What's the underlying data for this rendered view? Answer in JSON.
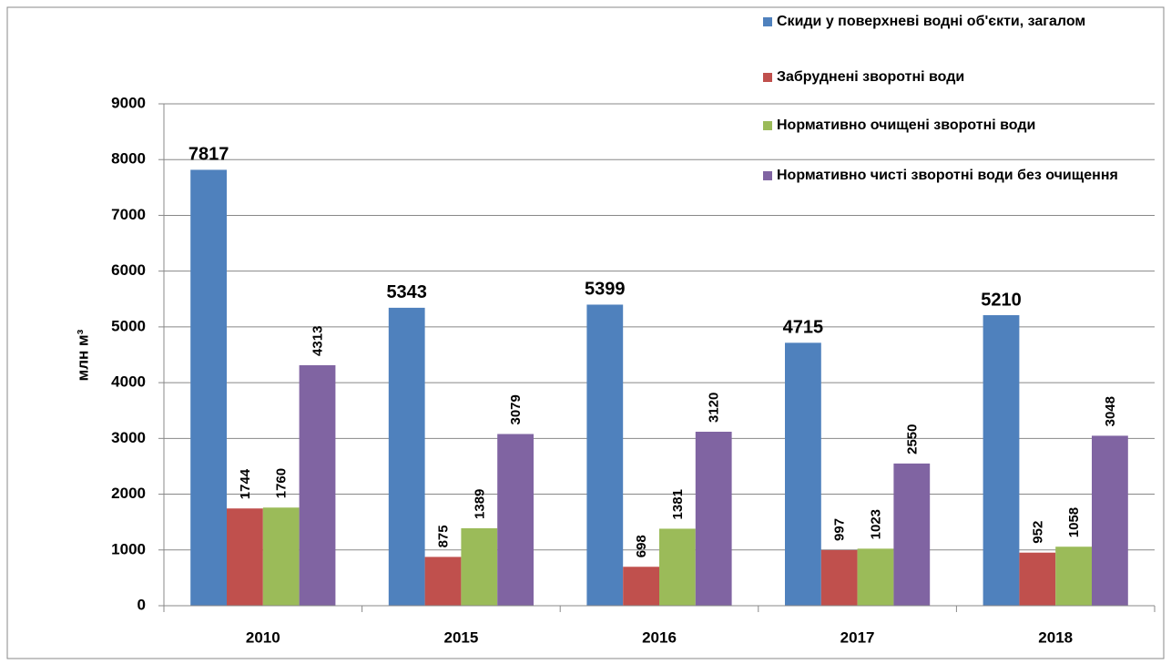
{
  "chart_data": {
    "type": "bar",
    "categories": [
      "2010",
      "2015",
      "2016",
      "2017",
      "2018"
    ],
    "y_label": "млн м³",
    "series": [
      {
        "name": "Скиди у поверхневі водні об'єкти, загалом",
        "color": "#4f81bd",
        "values": [
          7817,
          5343,
          5399,
          4715,
          5210
        ]
      },
      {
        "name": "Забруднені зворотні води",
        "color": "#c0504d",
        "values": [
          1744,
          875,
          698,
          997,
          952
        ]
      },
      {
        "name": "Нормативно очищені зворотні води",
        "color": "#9bbb59",
        "values": [
          1760,
          1389,
          1381,
          1023,
          1058
        ]
      },
      {
        "name": "Нормативно чисті зворотні води без очищення",
        "color": "#8064a2",
        "values": [
          4313,
          3079,
          3120,
          2550,
          3048
        ]
      }
    ],
    "ylim": [
      0,
      9000
    ],
    "yticks": [
      0,
      1000,
      2000,
      3000,
      4000,
      5000,
      6000,
      7000,
      8000,
      9000
    ],
    "grid": true,
    "legend": "top-right"
  }
}
